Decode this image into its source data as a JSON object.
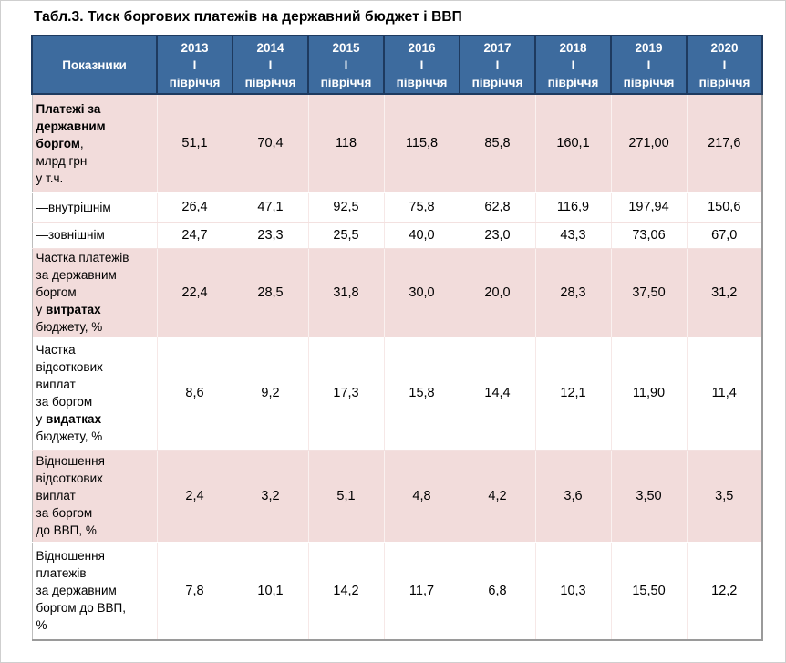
{
  "title": "Табл.3. Тиск боргових платежів на державний бюджет і ВВП",
  "colors": {
    "header_blue": "#3D6B9E",
    "header_border_navy": "#1E3A5F",
    "header_text": "#FFFFFF",
    "row_shade_pink": "#F2DCDB",
    "body_text": "#000000"
  },
  "table": {
    "header": {
      "indicator_label": "Показники",
      "years": [
        "2013",
        "2014",
        "2015",
        "2016",
        "2017",
        "2018",
        "2019",
        "2020"
      ],
      "period_line1": "І",
      "period_line2": "півріччя"
    },
    "rows": [
      {
        "label": "Платежі за державним боргом, млрд грн у т.ч.",
        "shaded": true,
        "label_lines": [
          [
            {
              "text": "Платежі за",
              "bold": true
            }
          ],
          [
            {
              "text": "державним",
              "bold": true
            }
          ],
          [
            {
              "text": "боргом",
              "bold": true
            },
            {
              "text": ",",
              "bold": false
            }
          ],
          [
            {
              "text": "млрд грн",
              "bold": false
            }
          ],
          [
            {
              "text": "у т.ч.",
              "bold": false
            }
          ]
        ],
        "values": [
          "51,1",
          "70,4",
          "118",
          "115,8",
          "85,8",
          "160,1",
          "271,00",
          "217,6"
        ]
      },
      {
        "label": "—внутрішнім",
        "shaded": false,
        "label_lines": [
          [
            {
              "text": "—внутрішнім",
              "bold": false
            }
          ]
        ],
        "values": [
          "26,4",
          "47,1",
          "92,5",
          "75,8",
          "62,8",
          "116,9",
          "197,94",
          "150,6"
        ]
      },
      {
        "label": "—зовнішнім",
        "shaded": false,
        "label_lines": [
          [
            {
              "text": "—зовнішнім",
              "bold": false
            }
          ]
        ],
        "values": [
          "24,7",
          "23,3",
          "25,5",
          "40,0",
          "23,0",
          "43,3",
          "73,06",
          "67,0"
        ]
      },
      {
        "label": "Частка платежів за державним боргом у витратах бюджету, %",
        "shaded": true,
        "label_lines": [
          [
            {
              "text": "Частка платежів",
              "bold": false
            }
          ],
          [
            {
              "text": "за державним",
              "bold": false
            }
          ],
          [
            {
              "text": "боргом",
              "bold": false
            }
          ],
          [
            {
              "text": "у ",
              "bold": false
            },
            {
              "text": "витратах",
              "bold": true
            }
          ],
          [
            {
              "text": "бюджету, %",
              "bold": false
            }
          ]
        ],
        "values": [
          "22,4",
          "28,5",
          "31,8",
          "30,0",
          "20,0",
          "28,3",
          "37,50",
          "31,2"
        ]
      },
      {
        "label": "Частка відсоткових виплат за боргом у видатках бюджету, %",
        "shaded": false,
        "label_lines": [
          [
            {
              "text": "Частка",
              "bold": false
            }
          ],
          [
            {
              "text": "відсоткових",
              "bold": false
            }
          ],
          [
            {
              "text": "виплат",
              "bold": false
            }
          ],
          [
            {
              "text": "за боргом",
              "bold": false
            }
          ],
          [
            {
              "text": "у ",
              "bold": false
            },
            {
              "text": "видатках",
              "bold": true
            }
          ],
          [
            {
              "text": "бюджету, %",
              "bold": false
            }
          ]
        ],
        "values": [
          "8,6",
          "9,2",
          "17,3",
          "15,8",
          "14,4",
          "12,1",
          "11,90",
          "11,4"
        ]
      },
      {
        "label": "Відношення відсоткових виплат за боргом до ВВП, %",
        "shaded": true,
        "label_lines": [
          [
            {
              "text": "Відношення",
              "bold": false
            }
          ],
          [
            {
              "text": "відсоткових",
              "bold": false
            }
          ],
          [
            {
              "text": "виплат",
              "bold": false
            }
          ],
          [
            {
              "text": "за боргом",
              "bold": false
            }
          ],
          [
            {
              "text": "до ВВП, %",
              "bold": false
            }
          ]
        ],
        "values": [
          "2,4",
          "3,2",
          "5,1",
          "4,8",
          "4,2",
          "3,6",
          "3,50",
          "3,5"
        ]
      },
      {
        "label": "Відношення платежів за державним боргом до ВВП, %",
        "shaded": false,
        "label_lines": [
          [
            {
              "text": "Відношення",
              "bold": false
            }
          ],
          [
            {
              "text": "платежів",
              "bold": false
            }
          ],
          [
            {
              "text": "за державним",
              "bold": false
            }
          ],
          [
            {
              "text": "боргом до ВВП,",
              "bold": false
            }
          ],
          [
            {
              "text": "%",
              "bold": false
            }
          ]
        ],
        "values": [
          "7,8",
          "10,1",
          "14,2",
          "11,7",
          "6,8",
          "10,3",
          "15,50",
          "12,2"
        ]
      }
    ]
  }
}
